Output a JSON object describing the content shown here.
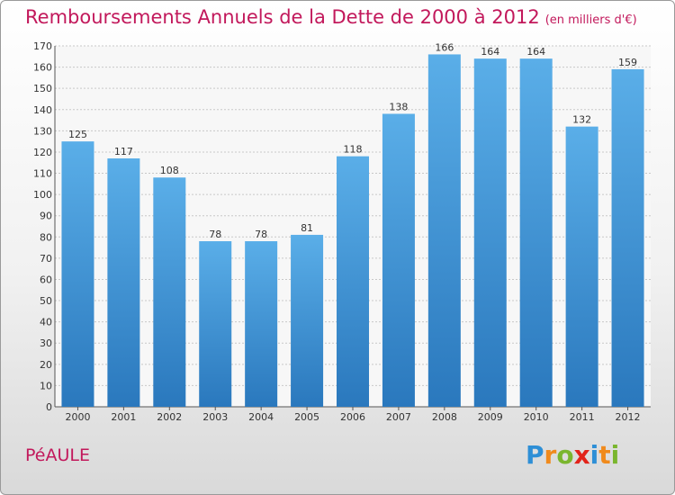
{
  "header": {
    "title": "Remboursements Annuels de la Dette de 2000 à 2012",
    "unit": "(en milliers d'€)"
  },
  "footer": {
    "commune": "PéAULE",
    "logo": [
      "P",
      "r",
      "o",
      "x",
      "i",
      "t",
      "i"
    ],
    "logo_colors": [
      "#2e8fd6",
      "#f08a1c",
      "#7ab62e",
      "#e2231a",
      "#2e8fd6",
      "#f08a1c",
      "#7ab62e"
    ]
  },
  "chart_data": {
    "type": "bar",
    "categories": [
      "2000",
      "2001",
      "2002",
      "2003",
      "2004",
      "2005",
      "2006",
      "2007",
      "2008",
      "2009",
      "2010",
      "2011",
      "2012"
    ],
    "values": [
      125,
      117,
      108,
      78,
      78,
      81,
      118,
      138,
      166,
      164,
      164,
      132,
      159
    ],
    "ylim": [
      0,
      170
    ],
    "yticks": [
      0,
      10,
      20,
      30,
      40,
      50,
      60,
      70,
      80,
      90,
      100,
      110,
      120,
      130,
      140,
      150,
      160,
      170
    ],
    "grid": true,
    "bar_color": "#3d97db",
    "title": "Remboursements Annuels de la Dette de 2000 à 2012",
    "xlabel": "",
    "ylabel": ""
  }
}
